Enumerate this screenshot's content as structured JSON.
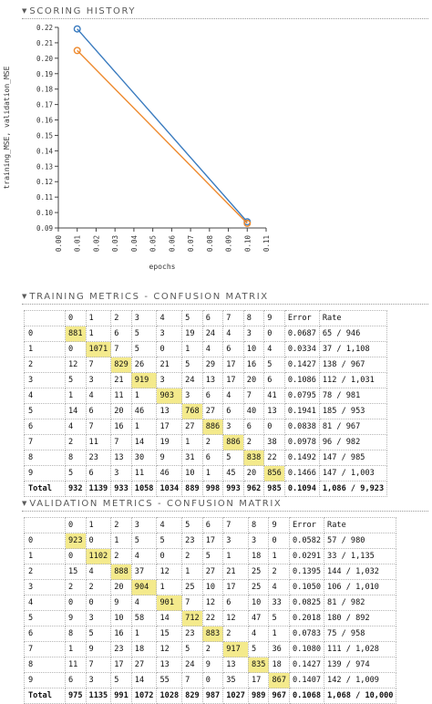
{
  "scoring": {
    "header": "SCORING HISTORY",
    "chart_data": {
      "type": "line",
      "xlabel": "epochs",
      "ylabel": "training_MSE, validation_MSE",
      "xlim": [
        0,
        0.11
      ],
      "ylim": [
        0.09,
        0.22
      ],
      "x_ticks": [
        "0.00",
        "0.01",
        "0.02",
        "0.03",
        "0.04",
        "0.05",
        "0.06",
        "0.07",
        "0.08",
        "0.09",
        "0.10",
        "0.11"
      ],
      "y_ticks": [
        "0.09",
        "0.10",
        "0.11",
        "0.12",
        "0.13",
        "0.14",
        "0.15",
        "0.16",
        "0.17",
        "0.18",
        "0.19",
        "0.20",
        "0.21",
        "0.22"
      ],
      "series": [
        {
          "color": "#3a7bbf",
          "x": [
            0.01,
            0.1
          ],
          "y": [
            0.219,
            0.094
          ]
        },
        {
          "color": "#ee8a2e",
          "x": [
            0.01,
            0.1
          ],
          "y": [
            0.205,
            0.093
          ]
        }
      ]
    }
  },
  "training": {
    "header": "TRAINING METRICS - CONFUSION MATRIX",
    "columns": [
      "",
      "0",
      "1",
      "2",
      "3",
      "4",
      "5",
      "6",
      "7",
      "8",
      "9",
      "Error",
      "Rate"
    ],
    "rows": [
      [
        "0",
        "881",
        "1",
        "6",
        "5",
        "3",
        "19",
        "24",
        "4",
        "3",
        "0",
        "0.0687",
        "65 / 946"
      ],
      [
        "1",
        "0",
        "1071",
        "7",
        "5",
        "0",
        "1",
        "4",
        "6",
        "10",
        "4",
        "0.0334",
        "37 / 1,108"
      ],
      [
        "2",
        "12",
        "7",
        "829",
        "26",
        "21",
        "5",
        "29",
        "17",
        "16",
        "5",
        "0.1427",
        "138 / 967"
      ],
      [
        "3",
        "5",
        "3",
        "21",
        "919",
        "3",
        "24",
        "13",
        "17",
        "20",
        "6",
        "0.1086",
        "112 / 1,031"
      ],
      [
        "4",
        "1",
        "4",
        "11",
        "1",
        "903",
        "3",
        "6",
        "4",
        "7",
        "41",
        "0.0795",
        "78 / 981"
      ],
      [
        "5",
        "14",
        "6",
        "20",
        "46",
        "13",
        "768",
        "27",
        "6",
        "40",
        "13",
        "0.1941",
        "185 / 953"
      ],
      [
        "6",
        "4",
        "7",
        "16",
        "1",
        "17",
        "27",
        "886",
        "3",
        "6",
        "0",
        "0.0838",
        "81 / 967"
      ],
      [
        "7",
        "2",
        "11",
        "7",
        "14",
        "19",
        "1",
        "2",
        "886",
        "2",
        "38",
        "0.0978",
        "96 / 982"
      ],
      [
        "8",
        "8",
        "23",
        "13",
        "30",
        "9",
        "31",
        "6",
        "5",
        "838",
        "22",
        "0.1492",
        "147 / 985"
      ],
      [
        "9",
        "5",
        "6",
        "3",
        "11",
        "46",
        "10",
        "1",
        "45",
        "20",
        "856",
        "0.1466",
        "147 / 1,003"
      ],
      [
        "Total",
        "932",
        "1139",
        "933",
        "1058",
        "1034",
        "889",
        "998",
        "993",
        "962",
        "985",
        "0.1094",
        "1,086 / 9,923"
      ]
    ]
  },
  "validation": {
    "header": "VALIDATION METRICS - CONFUSION MATRIX",
    "columns": [
      "",
      "0",
      "1",
      "2",
      "3",
      "4",
      "5",
      "6",
      "7",
      "8",
      "9",
      "Error",
      "Rate"
    ],
    "rows": [
      [
        "0",
        "923",
        "0",
        "1",
        "5",
        "5",
        "23",
        "17",
        "3",
        "3",
        "0",
        "0.0582",
        "57 / 980"
      ],
      [
        "1",
        "0",
        "1102",
        "2",
        "4",
        "0",
        "2",
        "5",
        "1",
        "18",
        "1",
        "0.0291",
        "33 / 1,135"
      ],
      [
        "2",
        "15",
        "4",
        "888",
        "37",
        "12",
        "1",
        "27",
        "21",
        "25",
        "2",
        "0.1395",
        "144 / 1,032"
      ],
      [
        "3",
        "2",
        "2",
        "20",
        "904",
        "1",
        "25",
        "10",
        "17",
        "25",
        "4",
        "0.1050",
        "106 / 1,010"
      ],
      [
        "4",
        "0",
        "0",
        "9",
        "4",
        "901",
        "7",
        "12",
        "6",
        "10",
        "33",
        "0.0825",
        "81 / 982"
      ],
      [
        "5",
        "9",
        "3",
        "10",
        "58",
        "14",
        "712",
        "22",
        "12",
        "47",
        "5",
        "0.2018",
        "180 / 892"
      ],
      [
        "6",
        "8",
        "5",
        "16",
        "1",
        "15",
        "23",
        "883",
        "2",
        "4",
        "1",
        "0.0783",
        "75 / 958"
      ],
      [
        "7",
        "1",
        "9",
        "23",
        "18",
        "12",
        "5",
        "2",
        "917",
        "5",
        "36",
        "0.1080",
        "111 / 1,028"
      ],
      [
        "8",
        "11",
        "7",
        "17",
        "27",
        "13",
        "24",
        "9",
        "13",
        "835",
        "18",
        "0.1427",
        "139 / 974"
      ],
      [
        "9",
        "6",
        "3",
        "5",
        "14",
        "55",
        "7",
        "0",
        "35",
        "17",
        "867",
        "0.1407",
        "142 / 1,009"
      ],
      [
        "Total",
        "975",
        "1135",
        "991",
        "1072",
        "1028",
        "829",
        "987",
        "1027",
        "989",
        "967",
        "0.1068",
        "1,068 / 10,000"
      ]
    ]
  }
}
